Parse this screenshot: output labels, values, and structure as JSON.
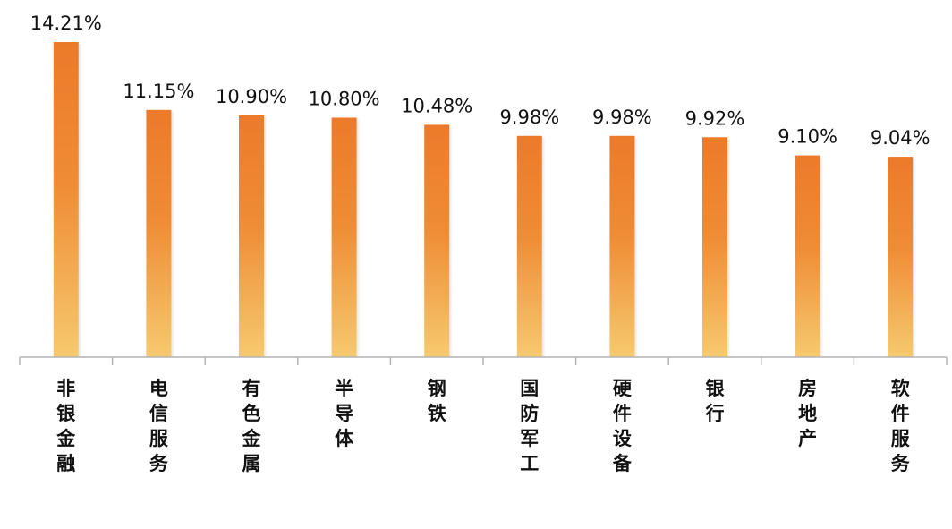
{
  "chart_data": {
    "type": "bar",
    "categories": [
      "非银金融",
      "电信服务",
      "有色金属",
      "半导体",
      "钢铁",
      "国防军工",
      "硬件设备",
      "银行",
      "房地产",
      "软件服务"
    ],
    "values": [
      14.21,
      11.15,
      10.9,
      10.8,
      10.48,
      9.98,
      9.98,
      9.92,
      9.1,
      9.04
    ],
    "data_labels": [
      "14.21%",
      "11.15%",
      "10.90%",
      "10.80%",
      "10.48%",
      "9.98%",
      "9.98%",
      "9.92%",
      "9.10%",
      "9.04%"
    ],
    "unit": "%",
    "ylim": [
      0,
      14.21
    ],
    "grid": false,
    "legend": "none",
    "colors": {
      "bar_top": "#ec7a2a",
      "bar_mid": "#ef8c35",
      "bar_bottom": "#f6c96e",
      "axis": "#b4b4b4",
      "text": "#111111"
    }
  }
}
